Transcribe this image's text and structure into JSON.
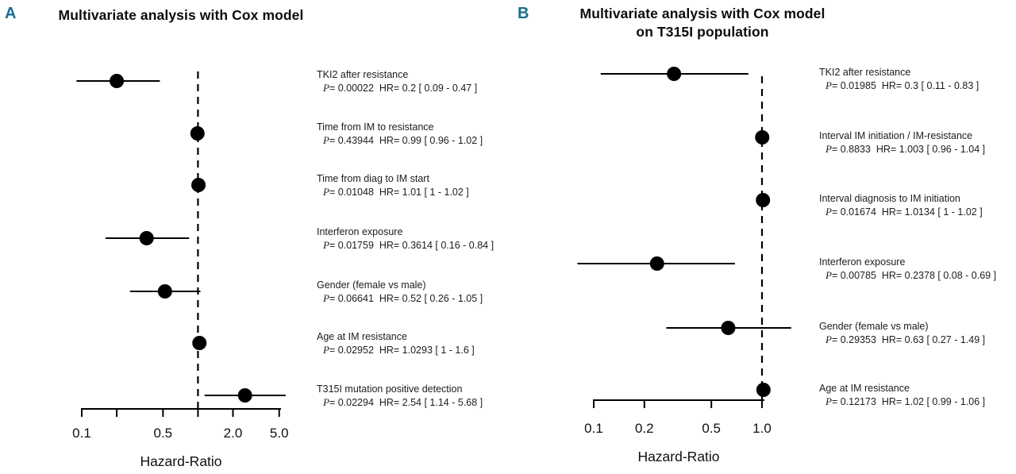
{
  "figure": {
    "background": "#ffffff",
    "colors": {
      "accent": "#1a6d8e",
      "points": "#000000",
      "text": "#111111"
    }
  },
  "chart_data": [
    {
      "type": "scatter",
      "subtype": "forest-plot",
      "panel_letter": "A",
      "title_lines": [
        "Multivariate analysis with Cox model"
      ],
      "xlabel": "Hazard-Ratio",
      "x_scale": "log",
      "x_range": [
        0.1,
        5.0
      ],
      "reference_line": 1.0,
      "x_ticks": [
        {
          "value": 0.1,
          "label": "0.1"
        },
        {
          "value": 0.2,
          "label": ""
        },
        {
          "value": 0.5,
          "label": "0.5"
        },
        {
          "value": 1.0,
          "label": ""
        },
        {
          "value": 2.0,
          "label": "2.0"
        },
        {
          "value": 5.0,
          "label": "5.0"
        }
      ],
      "rows": [
        {
          "label": "TKI2 after resistance",
          "p": 0.00022,
          "hr": 0.2,
          "ci": [
            0.09,
            0.47
          ],
          "stats_text": "P= 0.00022  HR= 0.2 [ 0.09 - 0.47 ]"
        },
        {
          "label": "Time from IM to resistance",
          "p": 0.43944,
          "hr": 0.99,
          "ci": [
            0.96,
            1.02
          ],
          "stats_text": "P= 0.43944  HR= 0.99 [ 0.96 - 1.02 ]"
        },
        {
          "label": "Time from diag to IM start",
          "p": 0.01048,
          "hr": 1.01,
          "ci": [
            1,
            1.02
          ],
          "stats_text": "P= 0.01048  HR= 1.01 [ 1 - 1.02 ]"
        },
        {
          "label": "Interferon exposure",
          "p": 0.01759,
          "hr": 0.3614,
          "ci": [
            0.16,
            0.84
          ],
          "stats_text": "P= 0.01759  HR= 0.3614 [ 0.16 - 0.84 ]"
        },
        {
          "label": "Gender (female vs male)",
          "p": 0.06641,
          "hr": 0.52,
          "ci": [
            0.26,
            1.05
          ],
          "stats_text": "P= 0.06641  HR= 0.52 [ 0.26 - 1.05 ]"
        },
        {
          "label": "Age at IM resistance",
          "p": 0.02952,
          "hr": 1.0293,
          "ci": [
            1,
            1.6
          ],
          "stats_text": "P= 0.02952  HR= 1.0293 [ 1 - 1.6 ]"
        },
        {
          "label": "T315I mutation positive detection",
          "p": 0.02294,
          "hr": 2.54,
          "ci": [
            1.14,
            5.68
          ],
          "stats_text": "P= 0.02294  HR= 2.54 [ 1.14 - 5.68 ]"
        }
      ]
    },
    {
      "type": "scatter",
      "subtype": "forest-plot",
      "panel_letter": "B",
      "title_lines": [
        "Multivariate analysis with Cox model",
        "on T315I population"
      ],
      "xlabel": "Hazard-Ratio",
      "x_scale": "log",
      "x_range": [
        0.1,
        1.0
      ],
      "reference_line": 1.0,
      "x_ticks": [
        {
          "value": 0.1,
          "label": "0.1"
        },
        {
          "value": 0.2,
          "label": "0.2"
        },
        {
          "value": 0.5,
          "label": "0.5"
        },
        {
          "value": 1.0,
          "label": "1.0"
        }
      ],
      "rows": [
        {
          "label": "TKI2 after resistance",
          "p": 0.01985,
          "hr": 0.3,
          "ci": [
            0.11,
            0.83
          ],
          "stats_text": "P= 0.01985  HR= 0.3 [ 0.11 - 0.83 ]"
        },
        {
          "label": "Interval IM initiation / IM-resistance",
          "p": 0.8833,
          "hr": 1.003,
          "ci": [
            0.96,
            1.04
          ],
          "stats_text": "P= 0.8833  HR= 1.003 [ 0.96 - 1.04 ]"
        },
        {
          "label": "Interval diagnosis to IM initiation",
          "p": 0.01674,
          "hr": 1.0134,
          "ci": [
            1,
            1.02
          ],
          "stats_text": "P= 0.01674  HR= 1.0134 [ 1 - 1.02 ]"
        },
        {
          "label": "Interferon exposure",
          "p": 0.00785,
          "hr": 0.2378,
          "ci": [
            0.08,
            0.69
          ],
          "stats_text": "P= 0.00785  HR= 0.2378 [ 0.08 - 0.69 ]"
        },
        {
          "label": "Gender (female vs male)",
          "p": 0.29353,
          "hr": 0.63,
          "ci": [
            0.27,
            1.49
          ],
          "stats_text": "P= 0.29353  HR= 0.63 [ 0.27 - 1.49 ]"
        },
        {
          "label": "Age at IM resistance",
          "p": 0.12173,
          "hr": 1.02,
          "ci": [
            0.99,
            1.06
          ],
          "stats_text": "P= 0.12173  HR= 1.02 [ 0.99 - 1.06 ]"
        }
      ]
    }
  ]
}
